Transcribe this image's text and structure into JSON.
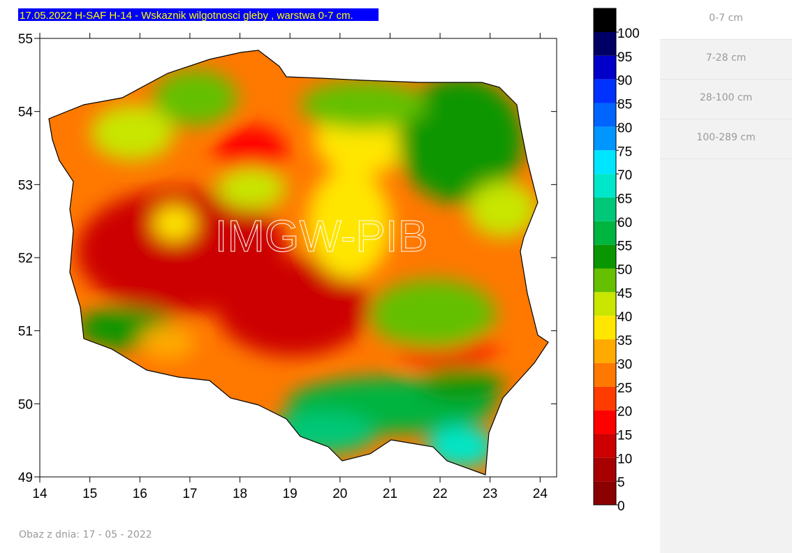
{
  "map": {
    "title": "17.05.2022 H-SAF H-14 - Wskaznik wilgotnosci gleby , warstwa 0-7 cm.",
    "watermark": "IMGW-PIB",
    "xlim": [
      14,
      24.33
    ],
    "ylim": [
      49,
      55
    ],
    "xticks": [
      14,
      15,
      16,
      17,
      18,
      19,
      20,
      21,
      22,
      23,
      24
    ],
    "yticks": [
      49,
      50,
      51,
      52,
      53,
      54,
      55
    ]
  },
  "colorbar": {
    "ticks": [
      0,
      5,
      10,
      15,
      20,
      25,
      30,
      35,
      40,
      45,
      50,
      55,
      60,
      65,
      70,
      75,
      80,
      85,
      90,
      95,
      100
    ],
    "colors": [
      "#8b0000",
      "#a80000",
      "#cc0000",
      "#ff0000",
      "#ff3c00",
      "#ff7800",
      "#ffaa00",
      "#ffe600",
      "#c8e600",
      "#64c000",
      "#0a9600",
      "#00b440",
      "#00c878",
      "#00e6c8",
      "#00e6ff",
      "#0096ff",
      "#0064ff",
      "#0032ff",
      "#0000c8",
      "#000064",
      "#000000"
    ]
  },
  "tabs": [
    "0-7 cm",
    "7-28 cm",
    "28-100 cm",
    "100-289 cm"
  ],
  "footer": "Obaz z dnia: 17 - 05 - 2022"
}
